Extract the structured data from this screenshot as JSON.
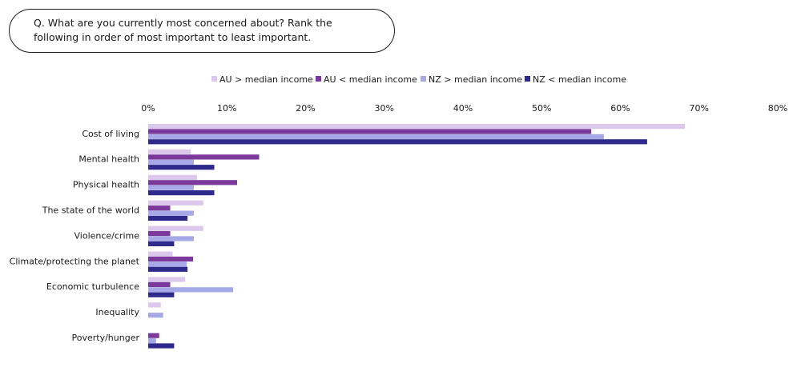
{
  "question": "Q. What are you currently most concerned about? Rank the following in order of most important to least important.",
  "chart_data": {
    "type": "bar",
    "orientation": "horizontal",
    "categories": [
      "Cost of living",
      "Mental health",
      "Physical health",
      "The state of the world",
      "Violence/crime",
      "Climate/protecting the planet",
      "Economic turbulence",
      "Inequality",
      "Poverty/hunger"
    ],
    "series": [
      {
        "name": "AU > median income",
        "color": "#dcc8ec",
        "values": [
          68.2,
          5.4,
          6.2,
          7.0,
          7.0,
          3.1,
          4.7,
          1.6,
          0.0
        ]
      },
      {
        "name": "AU < median income",
        "color": "#7b3a9b",
        "values": [
          56.3,
          14.1,
          11.3,
          2.8,
          2.8,
          5.7,
          2.8,
          0.0,
          1.4
        ]
      },
      {
        "name": "NZ > median income",
        "color": "#a6a9e6",
        "values": [
          57.9,
          5.8,
          5.8,
          5.8,
          5.8,
          4.9,
          10.8,
          1.9,
          1.0
        ]
      },
      {
        "name": "NZ < median income",
        "color": "#2d2a8c",
        "values": [
          63.4,
          8.4,
          8.4,
          5.0,
          3.3,
          5.0,
          3.3,
          0.0,
          3.3
        ]
      }
    ],
    "xlim": [
      0,
      80
    ],
    "ticks": [
      "0%",
      "10%",
      "20%",
      "30%",
      "40%",
      "50%",
      "60%",
      "70%",
      "80%"
    ],
    "grid": false,
    "legend_position": "top"
  }
}
